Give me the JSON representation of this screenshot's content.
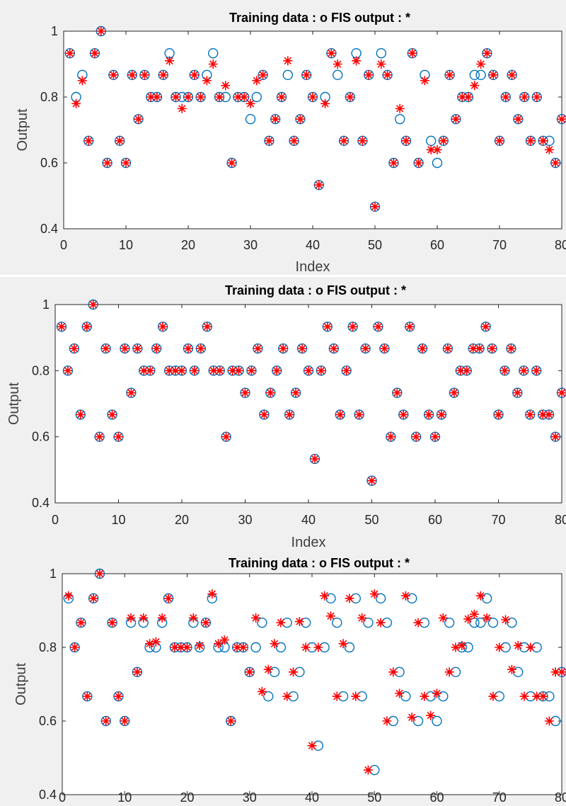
{
  "colors": {
    "observed_marker": "#0072bd",
    "predicted_marker": "#ff0000",
    "axes": "#262626",
    "plot_background": "#ffffff",
    "figure_background": "#f0f0f0"
  },
  "chart_data": [
    {
      "type": "scatter",
      "title": "Training data : o   FIS output : *",
      "xlabel": "Index",
      "ylabel": "Output",
      "xlim": [
        0,
        80
      ],
      "ylim": [
        0.4,
        1
      ],
      "xticks": [
        "0",
        "10",
        "20",
        "30",
        "40",
        "50",
        "60",
        "70",
        "80"
      ],
      "yticks": [
        "0.4",
        "0.6",
        "0.8",
        "1"
      ],
      "grid": false,
      "series": [
        {
          "marker": "o",
          "values": [
            0.933,
            0.8,
            0.867,
            0.667,
            0.933,
            1.0,
            0.6,
            0.867,
            0.667,
            0.6,
            0.867,
            0.733,
            0.867,
            0.8,
            0.8,
            0.867,
            0.933,
            0.8,
            0.8,
            0.8,
            0.867,
            0.8,
            0.867,
            0.933,
            0.8,
            0.8,
            0.6,
            0.8,
            0.8,
            0.733,
            0.8,
            0.867,
            0.667,
            0.733,
            0.8,
            0.867,
            0.667,
            0.733,
            0.867,
            0.8,
            0.533,
            0.8,
            0.933,
            0.867,
            0.667,
            0.8,
            0.933,
            0.667,
            0.867,
            0.467,
            0.933,
            0.867,
            0.6,
            0.733,
            0.667,
            0.933,
            0.6,
            0.867,
            0.667,
            0.6,
            0.667,
            0.867,
            0.733,
            0.8,
            0.8,
            0.867,
            0.867,
            0.933,
            0.867,
            0.667,
            0.8,
            0.867,
            0.733,
            0.8,
            0.667,
            0.8,
            0.667,
            0.667,
            0.6,
            0.733
          ]
        },
        {
          "marker": "*",
          "values": [
            0.933,
            0.78,
            0.85,
            0.667,
            0.933,
            1.0,
            0.6,
            0.867,
            0.667,
            0.6,
            0.867,
            0.733,
            0.867,
            0.8,
            0.8,
            0.867,
            0.91,
            0.8,
            0.765,
            0.8,
            0.867,
            0.8,
            0.85,
            0.9,
            0.8,
            0.835,
            0.6,
            0.8,
            0.8,
            0.78,
            0.85,
            0.867,
            0.667,
            0.733,
            0.8,
            0.91,
            0.667,
            0.733,
            0.867,
            0.8,
            0.533,
            0.78,
            0.933,
            0.9,
            0.667,
            0.8,
            0.91,
            0.667,
            0.867,
            0.467,
            0.9,
            0.867,
            0.6,
            0.765,
            0.667,
            0.933,
            0.6,
            0.85,
            0.64,
            0.64,
            0.667,
            0.867,
            0.733,
            0.8,
            0.8,
            0.835,
            0.9,
            0.933,
            0.867,
            0.667,
            0.8,
            0.867,
            0.733,
            0.8,
            0.667,
            0.8,
            0.667,
            0.64,
            0.6,
            0.733
          ]
        }
      ]
    },
    {
      "type": "scatter",
      "title": "Training data : o   FIS output : *",
      "xlabel": "Index",
      "ylabel": "Output",
      "xlim": [
        0,
        80
      ],
      "ylim": [
        0.4,
        1
      ],
      "xticks": [
        "0",
        "10",
        "20",
        "30",
        "40",
        "50",
        "60",
        "70",
        "80"
      ],
      "yticks": [
        "0.4",
        "0.6",
        "0.8",
        "1"
      ],
      "grid": false,
      "series": [
        {
          "marker": "o",
          "values": [
            0.933,
            0.8,
            0.867,
            0.667,
            0.933,
            1.0,
            0.6,
            0.867,
            0.667,
            0.6,
            0.867,
            0.733,
            0.867,
            0.8,
            0.8,
            0.867,
            0.933,
            0.8,
            0.8,
            0.8,
            0.867,
            0.8,
            0.867,
            0.933,
            0.8,
            0.8,
            0.6,
            0.8,
            0.8,
            0.733,
            0.8,
            0.867,
            0.667,
            0.733,
            0.8,
            0.867,
            0.667,
            0.733,
            0.867,
            0.8,
            0.533,
            0.8,
            0.933,
            0.867,
            0.667,
            0.8,
            0.933,
            0.667,
            0.867,
            0.467,
            0.933,
            0.867,
            0.6,
            0.733,
            0.667,
            0.933,
            0.6,
            0.867,
            0.667,
            0.6,
            0.667,
            0.867,
            0.733,
            0.8,
            0.8,
            0.867,
            0.867,
            0.933,
            0.867,
            0.667,
            0.8,
            0.867,
            0.733,
            0.8,
            0.667,
            0.8,
            0.667,
            0.667,
            0.6,
            0.733
          ]
        },
        {
          "marker": "*",
          "values": [
            0.933,
            0.8,
            0.867,
            0.667,
            0.933,
            1.0,
            0.6,
            0.867,
            0.667,
            0.6,
            0.867,
            0.733,
            0.867,
            0.8,
            0.8,
            0.867,
            0.933,
            0.8,
            0.8,
            0.8,
            0.867,
            0.8,
            0.867,
            0.933,
            0.8,
            0.8,
            0.6,
            0.8,
            0.8,
            0.733,
            0.8,
            0.867,
            0.667,
            0.733,
            0.8,
            0.867,
            0.667,
            0.733,
            0.867,
            0.8,
            0.533,
            0.8,
            0.933,
            0.867,
            0.667,
            0.8,
            0.933,
            0.667,
            0.867,
            0.467,
            0.933,
            0.867,
            0.6,
            0.733,
            0.667,
            0.933,
            0.6,
            0.867,
            0.667,
            0.6,
            0.667,
            0.867,
            0.733,
            0.8,
            0.8,
            0.867,
            0.867,
            0.933,
            0.867,
            0.667,
            0.8,
            0.867,
            0.733,
            0.8,
            0.667,
            0.8,
            0.667,
            0.667,
            0.6,
            0.733
          ]
        }
      ]
    },
    {
      "type": "scatter",
      "title": "Training data : o   FIS output : *",
      "xlabel": "",
      "ylabel": "Output",
      "xlim": [
        0,
        80
      ],
      "ylim": [
        0.4,
        1
      ],
      "xticks": [
        "0",
        "10",
        "20",
        "30",
        "40",
        "50",
        "60",
        "70",
        "80"
      ],
      "yticks": [
        "0.4",
        "0.6",
        "0.8",
        "1"
      ],
      "grid": false,
      "series": [
        {
          "marker": "o",
          "values": [
            0.933,
            0.8,
            0.867,
            0.667,
            0.933,
            1.0,
            0.6,
            0.867,
            0.667,
            0.6,
            0.867,
            0.733,
            0.867,
            0.8,
            0.8,
            0.867,
            0.933,
            0.8,
            0.8,
            0.8,
            0.867,
            0.8,
            0.867,
            0.933,
            0.8,
            0.8,
            0.6,
            0.8,
            0.8,
            0.733,
            0.8,
            0.867,
            0.667,
            0.733,
            0.8,
            0.867,
            0.667,
            0.733,
            0.867,
            0.8,
            0.533,
            0.8,
            0.933,
            0.867,
            0.667,
            0.8,
            0.933,
            0.667,
            0.867,
            0.467,
            0.933,
            0.867,
            0.6,
            0.733,
            0.667,
            0.933,
            0.6,
            0.867,
            0.667,
            0.6,
            0.667,
            0.867,
            0.733,
            0.8,
            0.8,
            0.867,
            0.867,
            0.933,
            0.867,
            0.667,
            0.8,
            0.867,
            0.733,
            0.8,
            0.667,
            0.8,
            0.667,
            0.667,
            0.6,
            0.733
          ]
        },
        {
          "marker": "*",
          "values": [
            0.94,
            0.8,
            0.867,
            0.667,
            0.933,
            1.0,
            0.6,
            0.867,
            0.667,
            0.6,
            0.88,
            0.733,
            0.88,
            0.81,
            0.815,
            0.88,
            0.933,
            0.8,
            0.8,
            0.8,
            0.88,
            0.805,
            0.867,
            0.945,
            0.81,
            0.82,
            0.6,
            0.8,
            0.8,
            0.733,
            0.88,
            0.68,
            0.74,
            0.81,
            0.867,
            0.667,
            0.733,
            0.87,
            0.8,
            0.533,
            0.8,
            0.94,
            0.885,
            0.667,
            0.81,
            0.933,
            0.667,
            0.88,
            0.467,
            0.945,
            0.867,
            0.6,
            0.733,
            0.675,
            0.94,
            0.61,
            0.867,
            0.667,
            0.615,
            0.675,
            0.88,
            0.733,
            0.8,
            0.805,
            0.877,
            0.89,
            0.94,
            0.88,
            0.667,
            0.8,
            0.875,
            0.74,
            0.805,
            0.667,
            0.8,
            0.667,
            0.667,
            0.6,
            0.733,
            0.733
          ]
        }
      ]
    }
  ]
}
